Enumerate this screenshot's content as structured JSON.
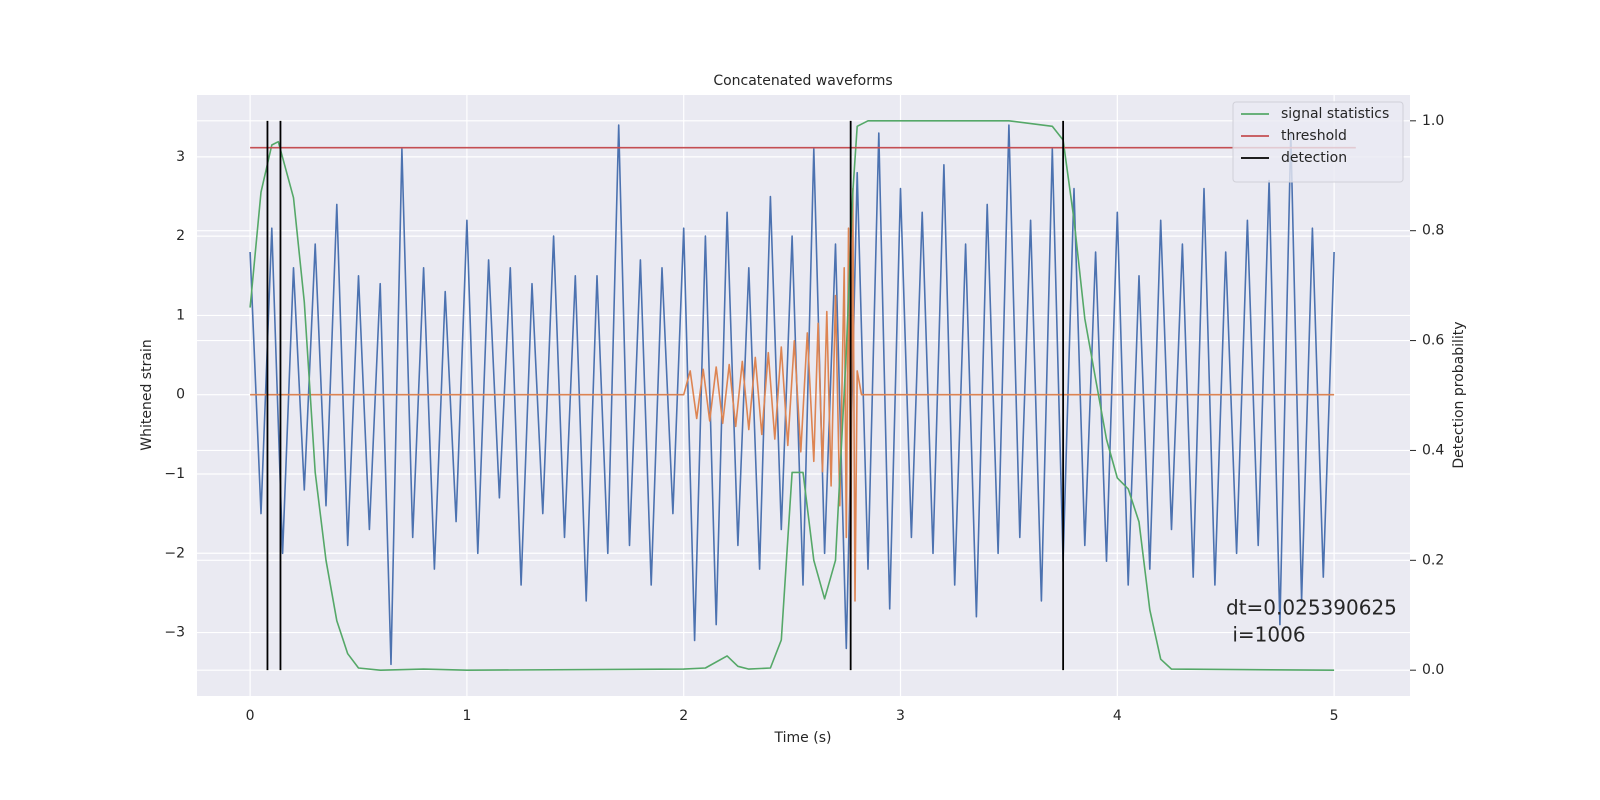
{
  "chart_data": {
    "type": "line",
    "title": "Concatenated waveforms",
    "xlabel": "Time (s)",
    "ylabel": "Whitened strain",
    "y2label": "Detection probability",
    "xlim": [
      -0.245,
      5.35
    ],
    "ylim": [
      -3.8,
      3.78
    ],
    "y2lim": [
      -0.047,
      1.047
    ],
    "xticks": [
      0,
      1,
      2,
      3,
      4,
      5
    ],
    "yticks": [
      {
        "value": -3,
        "label": "−3"
      },
      {
        "value": -2,
        "label": "−2"
      },
      {
        "value": -1,
        "label": "−1"
      },
      0,
      1,
      2,
      3
    ],
    "y2ticks": [
      {
        "value": 0,
        "label": "0.0"
      },
      0.2,
      0.4,
      0.6,
      0.8,
      {
        "value": 1,
        "label": "1.0"
      }
    ],
    "grid": true,
    "legend": "upper right",
    "series": [
      {
        "color": "#4c72b0",
        "x": [
          0,
          0.05,
          0.1,
          0.15,
          0.2,
          0.25,
          0.3,
          0.35,
          0.4,
          0.45,
          0.5,
          0.55,
          0.6,
          0.65,
          0.7,
          0.75,
          0.8,
          0.85,
          0.9,
          0.95,
          1,
          1.05,
          1.1,
          1.15,
          1.2,
          1.25,
          1.3,
          1.35,
          1.4,
          1.45,
          1.5,
          1.55,
          1.6,
          1.65,
          1.7,
          1.75,
          1.8,
          1.85,
          1.9,
          1.95,
          2,
          2.05,
          2.1,
          2.15,
          2.2,
          2.25,
          2.3,
          2.35,
          2.4,
          2.45,
          2.5,
          2.55,
          2.6,
          2.65,
          2.7,
          2.75,
          2.8,
          2.85,
          2.9,
          2.95,
          3,
          3.05,
          3.1,
          3.15,
          3.2,
          3.25,
          3.3,
          3.35,
          3.4,
          3.45,
          3.5,
          3.55,
          3.6,
          3.65,
          3.7,
          3.75,
          3.8,
          3.85,
          3.9,
          3.95,
          4,
          4.05,
          4.1,
          4.15,
          4.2,
          4.25,
          4.3,
          4.35,
          4.4,
          4.45,
          4.5,
          4.55,
          4.6,
          4.65,
          4.7,
          4.75,
          4.8,
          4.85,
          4.9,
          4.95,
          5
        ],
        "values": [
          1.8,
          -1.5,
          2.1,
          -2.0,
          1.6,
          -1.2,
          1.9,
          -1.4,
          2.4,
          -1.9,
          1.5,
          -1.7,
          1.4,
          -3.4,
          3.1,
          -1.8,
          1.6,
          -2.2,
          1.3,
          -1.6,
          2.2,
          -2.0,
          1.7,
          -1.3,
          1.6,
          -2.4,
          1.4,
          -1.5,
          2.0,
          -1.8,
          1.5,
          -2.6,
          1.5,
          -2.0,
          3.4,
          -1.9,
          1.7,
          -2.4,
          1.6,
          -1.5,
          2.1,
          -3.1,
          2.0,
          -2.9,
          2.3,
          -1.9,
          1.6,
          -2.2,
          2.5,
          -1.7,
          2.0,
          -2.4,
          3.1,
          -2.0,
          1.9,
          -3.2,
          2.8,
          -2.2,
          3.3,
          -2.7,
          2.6,
          -1.8,
          2.3,
          -2.0,
          2.9,
          -2.4,
          1.9,
          -2.8,
          2.4,
          -2.0,
          3.4,
          -1.8,
          2.2,
          -2.6,
          3.1,
          -2.1,
          2.6,
          -1.9,
          1.8,
          -2.1,
          2.3,
          -2.4,
          1.5,
          -2.2,
          2.2,
          -1.7,
          1.9,
          -2.3,
          2.6,
          -2.4,
          1.8,
          -2.0,
          2.2,
          -1.9,
          2.7,
          -2.9,
          3.3,
          -2.6,
          2.1,
          -2.3,
          1.8
        ]
      },
      {
        "color": "#dd8452",
        "x": [
          0,
          2.0,
          2.03,
          2.06,
          2.09,
          2.12,
          2.15,
          2.18,
          2.21,
          2.24,
          2.27,
          2.3,
          2.33,
          2.36,
          2.39,
          2.42,
          2.45,
          2.48,
          2.51,
          2.54,
          2.57,
          2.6,
          2.62,
          2.64,
          2.66,
          2.68,
          2.7,
          2.72,
          2.74,
          2.75,
          2.76,
          2.77,
          2.78,
          2.79,
          2.8,
          2.82,
          5.0
        ],
        "values": [
          0,
          0,
          0.3,
          -0.3,
          0.32,
          -0.33,
          0.35,
          -0.36,
          0.38,
          -0.4,
          0.42,
          -0.44,
          0.47,
          -0.5,
          0.53,
          -0.56,
          0.6,
          -0.64,
          0.68,
          -0.72,
          0.78,
          -0.84,
          0.9,
          -0.97,
          1.05,
          -1.15,
          1.25,
          -1.4,
          1.6,
          -1.8,
          2.1,
          -2.4,
          2.6,
          -2.6,
          0.3,
          0,
          0
        ]
      },
      {
        "name": "signal statistics",
        "color": "#55a868",
        "axis": "y2",
        "x": [
          0,
          0.05,
          0.1,
          0.13,
          0.2,
          0.25,
          0.3,
          0.35,
          0.4,
          0.45,
          0.5,
          0.6,
          0.8,
          1.0,
          2.0,
          2.1,
          2.2,
          2.25,
          2.3,
          2.4,
          2.45,
          2.5,
          2.55,
          2.6,
          2.65,
          2.7,
          2.75,
          2.78,
          2.8,
          2.85,
          3.5,
          3.7,
          3.75,
          3.8,
          3.85,
          3.9,
          3.95,
          4.0,
          4.05,
          4.1,
          4.15,
          4.2,
          4.25,
          5.0
        ],
        "values": [
          0.66,
          0.87,
          0.956,
          0.962,
          0.86,
          0.67,
          0.36,
          0.2,
          0.09,
          0.03,
          0.004,
          0,
          0.002,
          0,
          0.002,
          0.004,
          0.026,
          0.007,
          0.002,
          0.004,
          0.055,
          0.36,
          0.36,
          0.2,
          0.13,
          0.2,
          0.58,
          0.87,
          0.99,
          1.0,
          1.0,
          0.99,
          0.965,
          0.82,
          0.64,
          0.53,
          0.42,
          0.35,
          0.33,
          0.27,
          0.11,
          0.02,
          0.002,
          0
        ]
      },
      {
        "name": "threshold",
        "color": "#c44e52",
        "axis": "y2",
        "x": [
          0,
          5.1
        ],
        "values": [
          0.951,
          0.951
        ]
      }
    ],
    "detection": {
      "name": "detection",
      "color": "#000000",
      "x": [
        0.08,
        0.14,
        2.77,
        3.75
      ],
      "y2range": [
        0,
        1
      ]
    },
    "annotation": [
      "dt=0.025390625",
      " i=1006"
    ]
  }
}
